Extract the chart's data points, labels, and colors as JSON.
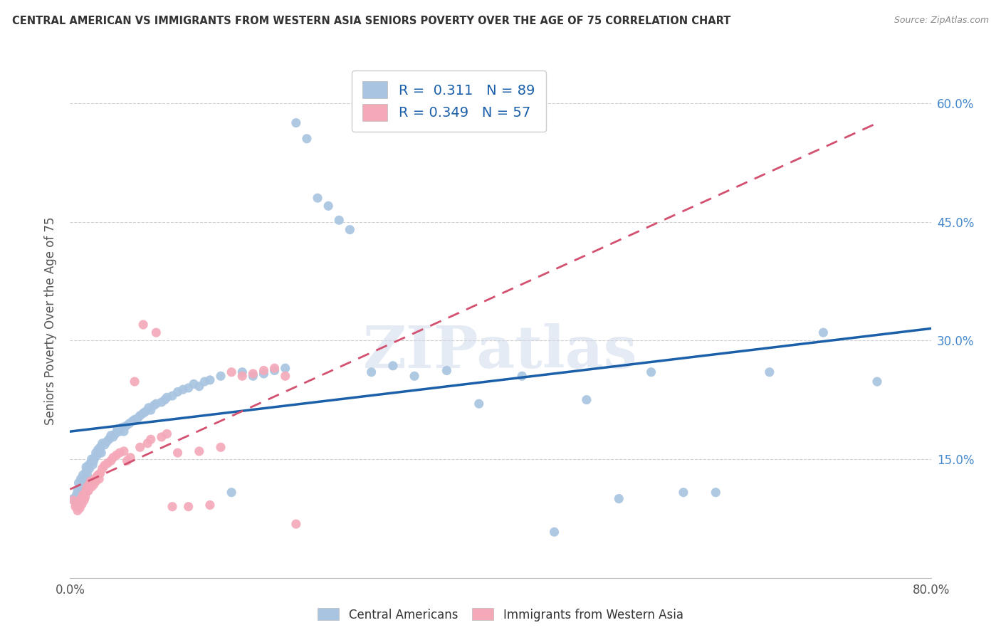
{
  "title": "CENTRAL AMERICAN VS IMMIGRANTS FROM WESTERN ASIA SENIORS POVERTY OVER THE AGE OF 75 CORRELATION CHART",
  "source": "Source: ZipAtlas.com",
  "ylabel": "Seniors Poverty Over the Age of 75",
  "watermark": "ZIPatlas",
  "blue_R": 0.311,
  "blue_N": 89,
  "pink_R": 0.349,
  "pink_N": 57,
  "xlim": [
    0.0,
    0.8
  ],
  "ylim": [
    0.0,
    0.65
  ],
  "blue_color": "#a8c4e0",
  "pink_color": "#f4a8b8",
  "blue_line_color": "#1a5fa8",
  "pink_line_color": "#d45070",
  "legend_text_color": "#1a5fa8",
  "grid_color": "#d0d0d0",
  "title_color": "#333333",
  "right_axis_color": "#4488cc",
  "background_color": "#ffffff",
  "blue_scatter_x": [
    0.003,
    0.005,
    0.006,
    0.007,
    0.008,
    0.009,
    0.01,
    0.011,
    0.012,
    0.013,
    0.014,
    0.015,
    0.015,
    0.016,
    0.017,
    0.018,
    0.019,
    0.02,
    0.021,
    0.022,
    0.023,
    0.024,
    0.025,
    0.026,
    0.027,
    0.028,
    0.029,
    0.03,
    0.032,
    0.034,
    0.036,
    0.038,
    0.04,
    0.042,
    0.044,
    0.046,
    0.048,
    0.05,
    0.052,
    0.055,
    0.058,
    0.06,
    0.063,
    0.065,
    0.068,
    0.07,
    0.073,
    0.075,
    0.078,
    0.08,
    0.085,
    0.088,
    0.09,
    0.095,
    0.1,
    0.105,
    0.11,
    0.115,
    0.12,
    0.125,
    0.13,
    0.14,
    0.15,
    0.16,
    0.17,
    0.18,
    0.19,
    0.2,
    0.21,
    0.22,
    0.23,
    0.24,
    0.25,
    0.26,
    0.28,
    0.3,
    0.32,
    0.35,
    0.38,
    0.42,
    0.45,
    0.48,
    0.51,
    0.54,
    0.57,
    0.6,
    0.65,
    0.7,
    0.75
  ],
  "blue_scatter_y": [
    0.1,
    0.095,
    0.105,
    0.11,
    0.12,
    0.115,
    0.125,
    0.118,
    0.13,
    0.122,
    0.128,
    0.135,
    0.14,
    0.13,
    0.142,
    0.138,
    0.145,
    0.15,
    0.143,
    0.148,
    0.152,
    0.158,
    0.155,
    0.162,
    0.16,
    0.165,
    0.158,
    0.17,
    0.168,
    0.172,
    0.175,
    0.18,
    0.178,
    0.182,
    0.188,
    0.185,
    0.19,
    0.185,
    0.192,
    0.195,
    0.198,
    0.2,
    0.202,
    0.205,
    0.208,
    0.21,
    0.215,
    0.212,
    0.218,
    0.22,
    0.222,
    0.225,
    0.228,
    0.23,
    0.235,
    0.238,
    0.24,
    0.245,
    0.242,
    0.248,
    0.25,
    0.255,
    0.108,
    0.26,
    0.255,
    0.258,
    0.262,
    0.265,
    0.575,
    0.555,
    0.48,
    0.47,
    0.452,
    0.44,
    0.26,
    0.268,
    0.255,
    0.262,
    0.22,
    0.255,
    0.058,
    0.225,
    0.1,
    0.26,
    0.108,
    0.108,
    0.26,
    0.31,
    0.248
  ],
  "pink_scatter_x": [
    0.003,
    0.005,
    0.006,
    0.007,
    0.008,
    0.009,
    0.01,
    0.011,
    0.012,
    0.013,
    0.014,
    0.015,
    0.015,
    0.016,
    0.017,
    0.018,
    0.019,
    0.02,
    0.021,
    0.022,
    0.023,
    0.024,
    0.025,
    0.026,
    0.027,
    0.028,
    0.03,
    0.032,
    0.035,
    0.038,
    0.04,
    0.043,
    0.046,
    0.05,
    0.053,
    0.056,
    0.06,
    0.065,
    0.068,
    0.072,
    0.075,
    0.08,
    0.085,
    0.09,
    0.095,
    0.1,
    0.11,
    0.12,
    0.13,
    0.14,
    0.15,
    0.16,
    0.17,
    0.18,
    0.19,
    0.2,
    0.21
  ],
  "pink_scatter_y": [
    0.098,
    0.09,
    0.092,
    0.085,
    0.095,
    0.088,
    0.1,
    0.093,
    0.105,
    0.098,
    0.102,
    0.108,
    0.112,
    0.115,
    0.11,
    0.118,
    0.122,
    0.115,
    0.12,
    0.118,
    0.125,
    0.122,
    0.128,
    0.13,
    0.125,
    0.132,
    0.138,
    0.142,
    0.145,
    0.148,
    0.152,
    0.155,
    0.158,
    0.16,
    0.148,
    0.152,
    0.248,
    0.165,
    0.32,
    0.17,
    0.175,
    0.31,
    0.178,
    0.182,
    0.09,
    0.158,
    0.09,
    0.16,
    0.092,
    0.165,
    0.26,
    0.255,
    0.258,
    0.262,
    0.265,
    0.255,
    0.068
  ]
}
